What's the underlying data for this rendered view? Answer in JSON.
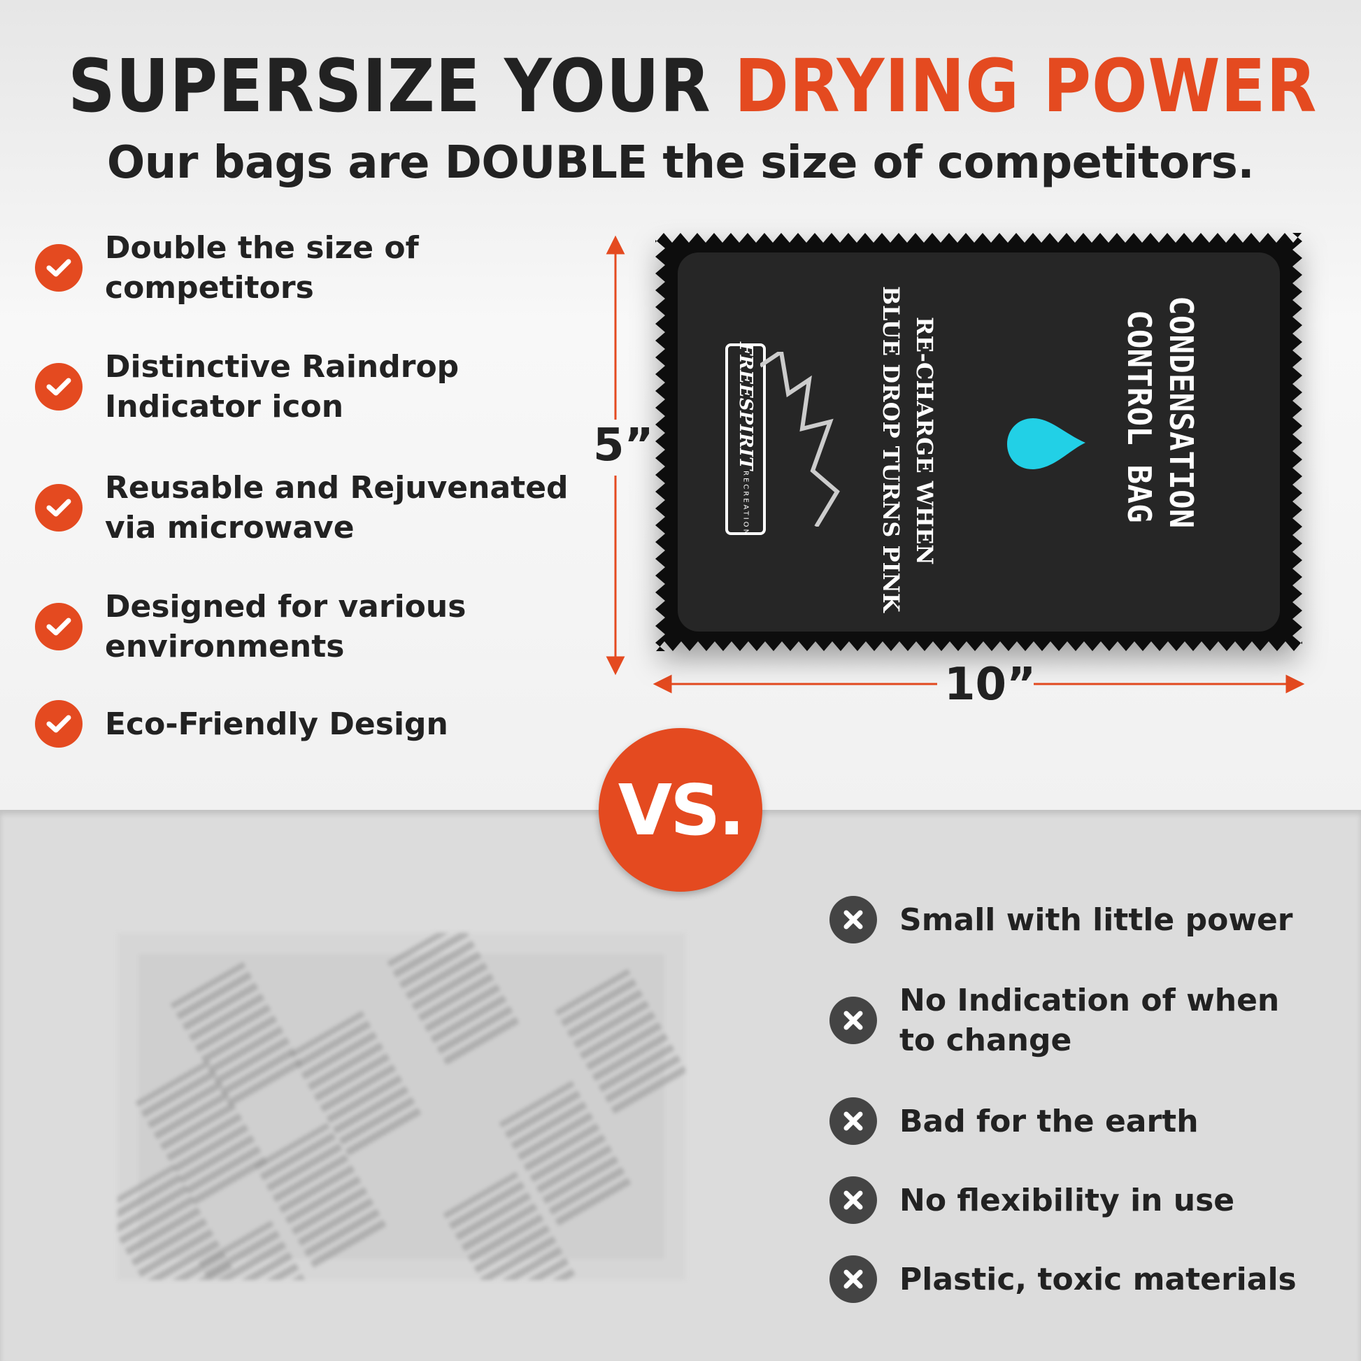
{
  "header": {
    "title_part1": "SUPERSIZE YOUR",
    "title_part2": "DRYING POWER",
    "subtitle": "Our bags are DOUBLE the size of competitors."
  },
  "colors": {
    "accent": "#e44a20",
    "dark": "#222222",
    "drop": "#22d0e6",
    "negative_icon": "#444444"
  },
  "features": [
    {
      "icon": "check-icon",
      "text": "Double the size of competitors"
    },
    {
      "icon": "check-icon",
      "text": "Distinctive Raindrop Indicator icon"
    },
    {
      "icon": "check-icon",
      "text": "Reusable and Rejuvenated via microwave"
    },
    {
      "icon": "check-icon",
      "text": "Designed for various environments"
    },
    {
      "icon": "check-icon",
      "text": "Eco-Friendly Design"
    }
  ],
  "product": {
    "height_label": "5”",
    "width_label": "10”",
    "bag_title_line1": "CONDENSATION",
    "bag_title_line2": "CONTROL BAG",
    "bag_note_line1": "RE-CHARGE WHEN",
    "bag_note_line2": "BLUE DROP TURNS PINK",
    "brand": "FREESPIRIT",
    "brand_sub": "RECREATION"
  },
  "vs_label": "VS.",
  "drawbacks": [
    {
      "icon": "x-icon",
      "text": "Small with little power"
    },
    {
      "icon": "x-icon",
      "text": "No Indication of when to change"
    },
    {
      "icon": "x-icon",
      "text": "Bad for the earth"
    },
    {
      "icon": "x-icon",
      "text": "No flexibility in use"
    },
    {
      "icon": "x-icon",
      "text": "Plastic, toxic materials"
    }
  ]
}
